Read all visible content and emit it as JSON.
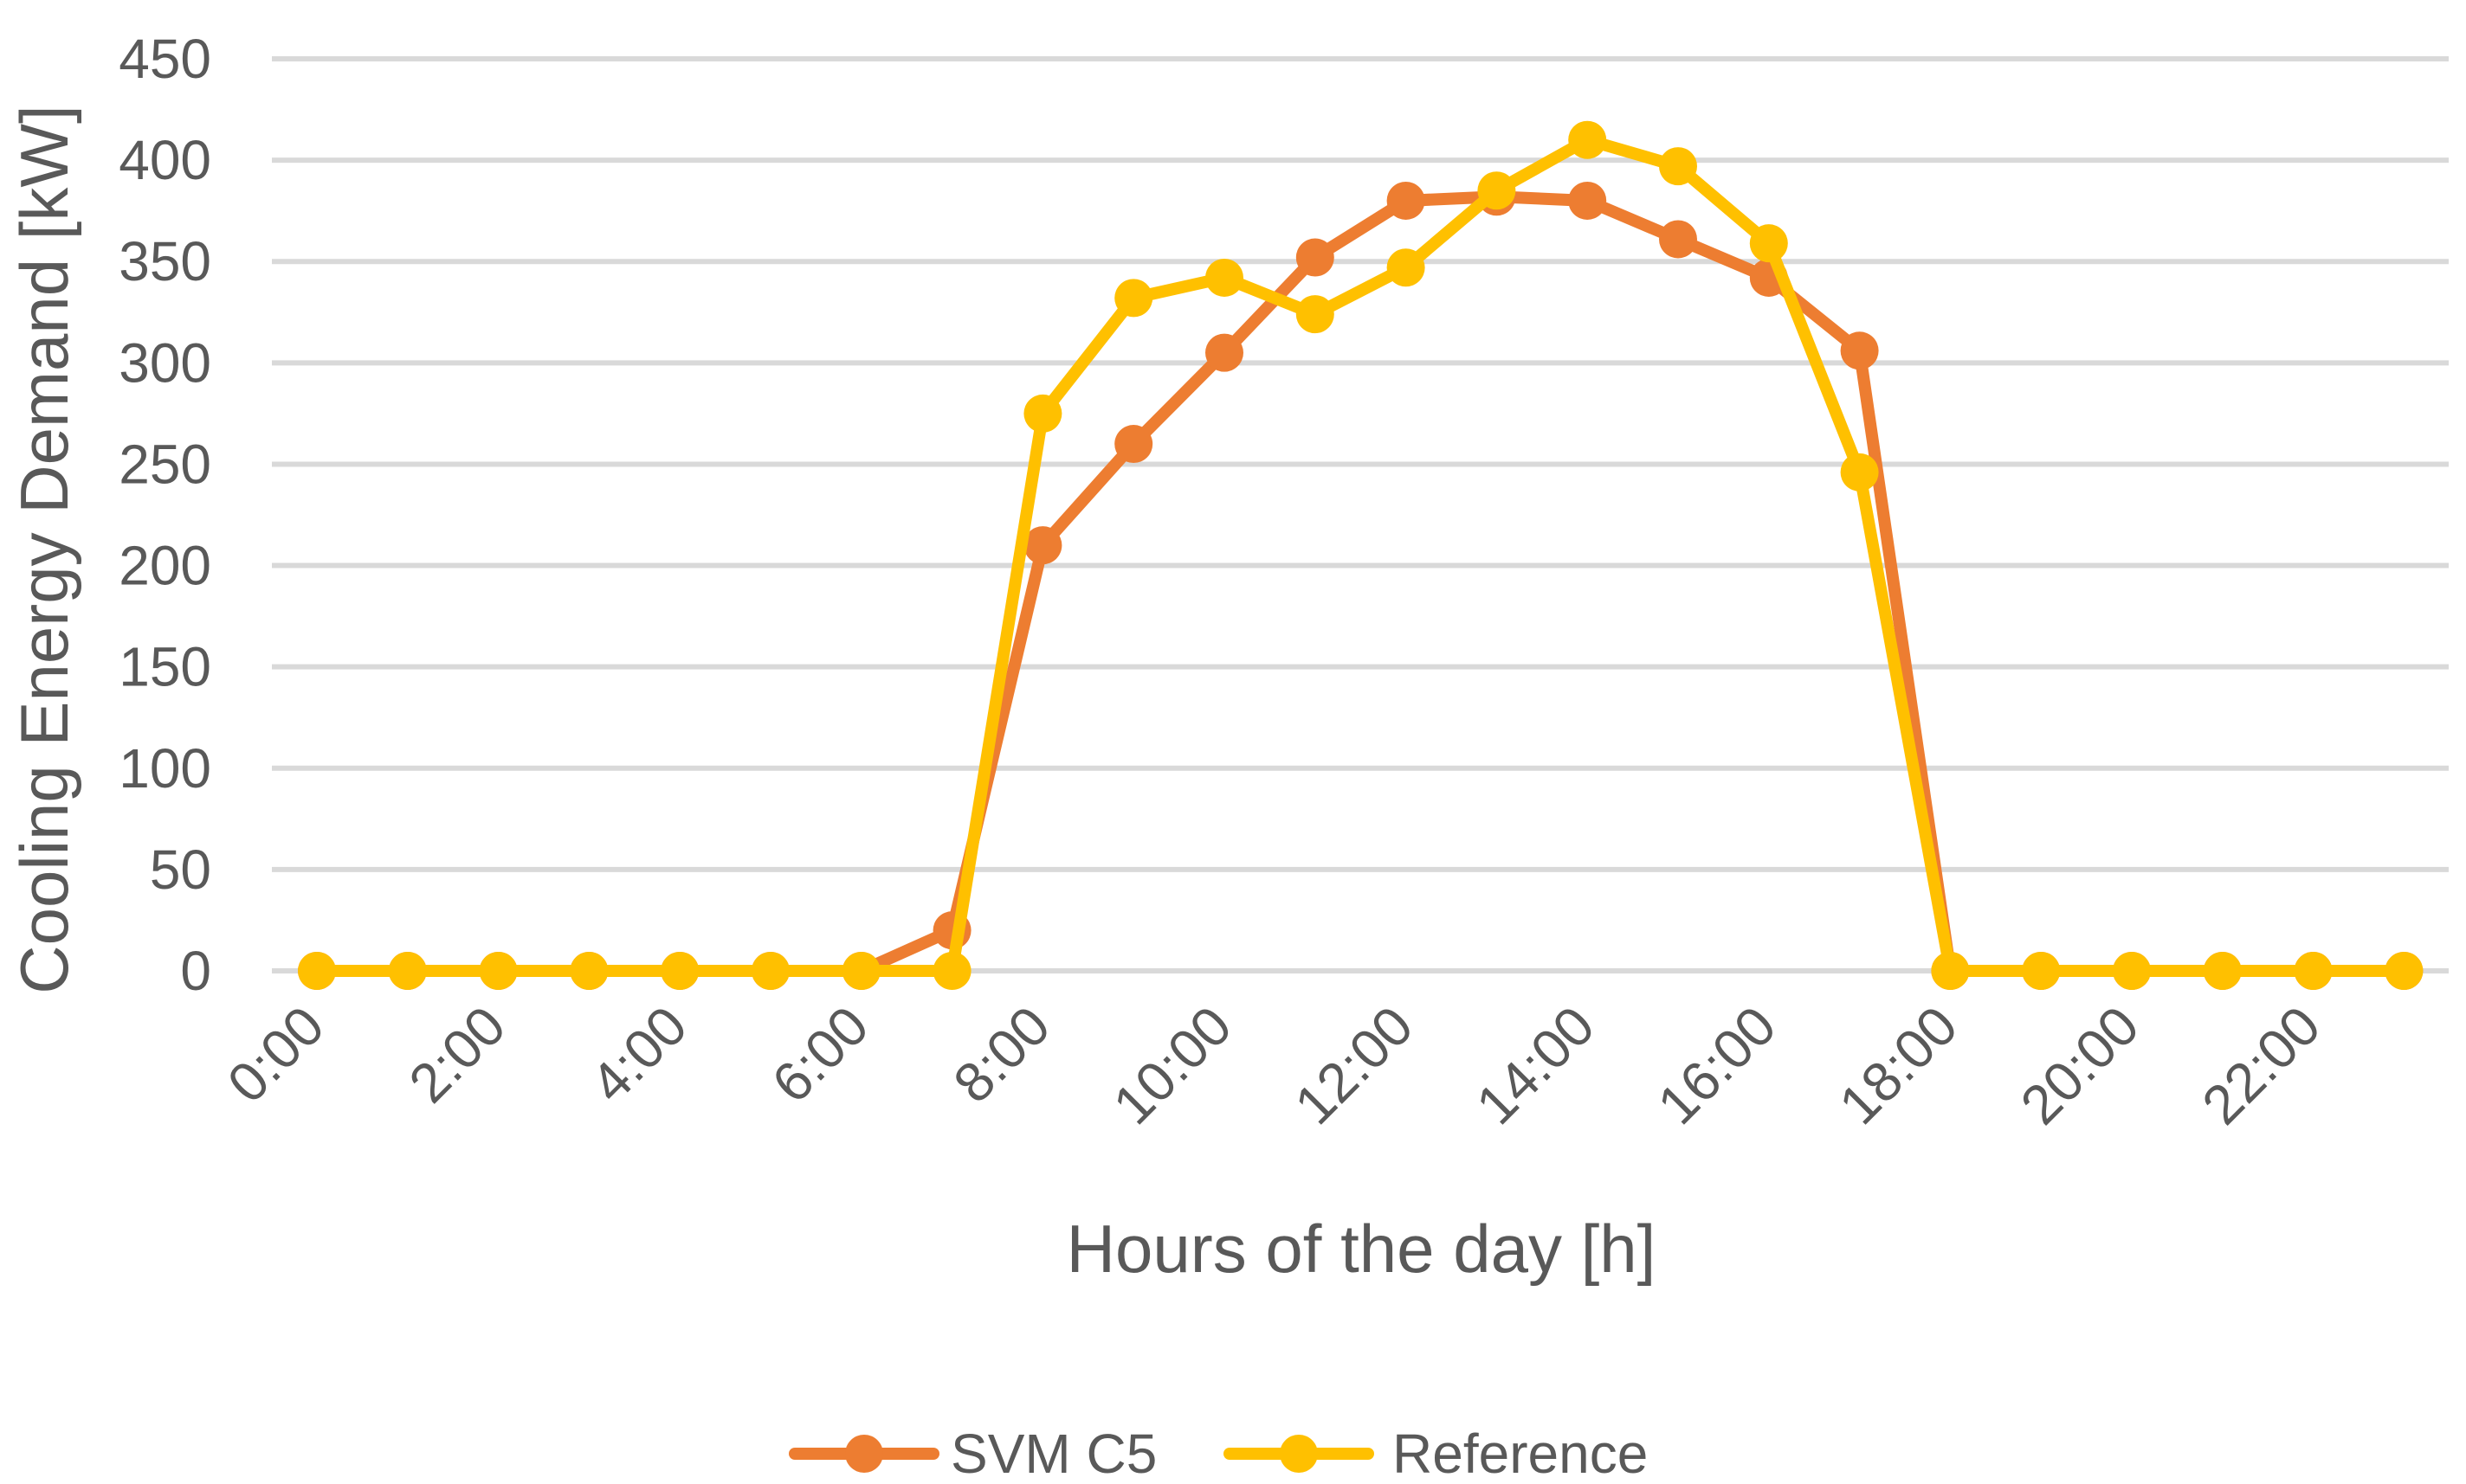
{
  "chart_data": {
    "type": "line",
    "title": "",
    "xlabel": "Hours of the day [h]",
    "ylabel": "Cooling Energy Demand [kW]",
    "ylim": [
      0,
      450
    ],
    "yticks": [
      0,
      50,
      100,
      150,
      200,
      250,
      300,
      350,
      400,
      450
    ],
    "categories": [
      "0:00",
      "1:00",
      "2:00",
      "3:00",
      "4:00",
      "5:00",
      "6:00",
      "7:00",
      "8:00",
      "9:00",
      "10:00",
      "11:00",
      "12:00",
      "13:00",
      "14:00",
      "15:00",
      "16:00",
      "17:00",
      "18:00",
      "19:00",
      "20:00",
      "21:00",
      "22:00",
      "23:00"
    ],
    "xtick_labels_shown": [
      "0:00",
      "2:00",
      "4:00",
      "6:00",
      "8:00",
      "10:00",
      "12:00",
      "14:00",
      "16:00",
      "18:00",
      "20:00",
      "22:00"
    ],
    "grid": "horizontal",
    "legend_position": "bottom-center",
    "series": [
      {
        "name": "SVM C5",
        "color": "#ED7D31",
        "values": [
          0,
          0,
          0,
          0,
          0,
          0,
          0,
          20,
          210,
          260,
          305,
          352,
          380,
          382,
          380,
          361,
          342,
          306,
          0,
          0,
          0,
          0,
          0,
          0
        ]
      },
      {
        "name": "Reference",
        "color": "#FFC000",
        "values": [
          0,
          0,
          0,
          0,
          0,
          0,
          0,
          0,
          275,
          332,
          342,
          324,
          347,
          385,
          410,
          397,
          359,
          246,
          0,
          0,
          0,
          0,
          0,
          0
        ]
      }
    ]
  }
}
